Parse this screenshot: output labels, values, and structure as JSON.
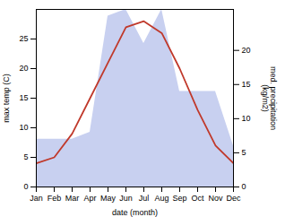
{
  "chart_data": {
    "type": "line",
    "categories": [
      "Jan",
      "Feb",
      "Mar",
      "Apr",
      "May",
      "Jun",
      "Jul",
      "Aug",
      "Sep",
      "Oct",
      "Nov",
      "Dec"
    ],
    "xlabel": "date (month)",
    "ylabel": "max temp (C)",
    "y2label": "med. precipitation\n(kg/m2)",
    "ylim": [
      0,
      30
    ],
    "yticks": [
      0,
      5,
      10,
      15,
      20,
      25
    ],
    "y2lim": [
      0,
      26
    ],
    "y2ticks": [
      0,
      5,
      10,
      15,
      20
    ],
    "grid": false,
    "series": [
      {
        "type": "area",
        "axis": "y2",
        "color": "#c8d0f0",
        "values": [
          7,
          7,
          7,
          8,
          25,
          26,
          21,
          26,
          14,
          14,
          14,
          6
        ]
      },
      {
        "type": "line",
        "color": "#c0392b",
        "values": [
          4,
          5,
          9,
          15,
          21,
          27,
          28,
          26,
          20,
          13,
          7,
          4
        ]
      }
    ]
  }
}
